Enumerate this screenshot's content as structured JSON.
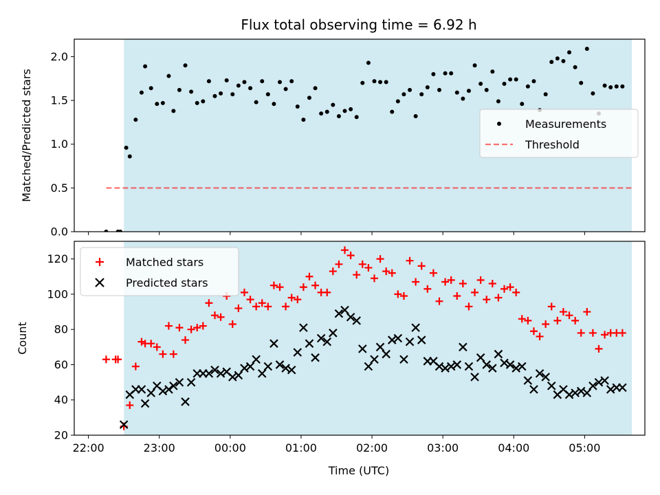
{
  "figure_title": "Flux total observing time = 6.92 h",
  "colors": {
    "shade": "#add8e6",
    "ratio": "#000000",
    "threshold": "#ff0000",
    "matched": "#ff0000",
    "predicted": "#000000"
  },
  "chart_data": [
    {
      "type": "scatter",
      "panel": "top",
      "title": "Flux total observing time = 6.92 h",
      "xlabel": "",
      "ylabel": "Matched/Predicted stars",
      "xlim": [
        "21:48",
        "05:51"
      ],
      "ylim": [
        0,
        2.2
      ],
      "yticks": [
        "0.0",
        "0.5",
        "1.0",
        "1.5",
        "2.0"
      ],
      "shaded_span": [
        "22:30",
        "05:40"
      ],
      "legend_position": "center-right",
      "series": [
        {
          "name": "Measurements",
          "marker": "dot",
          "color": "#000000",
          "x": [
            "22:15",
            "22:25",
            "22:27",
            "22:32",
            "22:35",
            "22:40",
            "22:45",
            "22:48",
            "22:53",
            "22:58",
            "23:03",
            "23:08",
            "23:12",
            "23:17",
            "23:22",
            "23:27",
            "23:32",
            "23:37",
            "23:42",
            "23:47",
            "23:52",
            "23:57",
            "24:02",
            "24:07",
            "24:12",
            "24:17",
            "24:22",
            "24:27",
            "24:32",
            "24:37",
            "24:42",
            "24:47",
            "24:52",
            "24:57",
            "25:02",
            "25:07",
            "25:12",
            "25:17",
            "25:22",
            "25:27",
            "25:32",
            "25:37",
            "25:42",
            "25:47",
            "25:52",
            "25:57",
            "26:02",
            "26:07",
            "26:12",
            "26:17",
            "26:22",
            "26:27",
            "26:32",
            "26:37",
            "26:42",
            "26:47",
            "26:52",
            "26:57",
            "27:02",
            "27:07",
            "27:12",
            "27:17",
            "27:22",
            "27:27",
            "27:32",
            "27:37",
            "27:42",
            "27:47",
            "27:52",
            "27:57",
            "28:02",
            "28:07",
            "28:12",
            "28:17",
            "28:22",
            "28:27",
            "28:32",
            "28:37",
            "28:42",
            "28:47",
            "28:52",
            "28:57",
            "29:02",
            "29:07",
            "29:12",
            "29:17",
            "29:22",
            "29:27",
            "29:32"
          ],
          "y": [
            0.0,
            0.0,
            0.0,
            0.96,
            0.86,
            1.28,
            1.59,
            1.89,
            1.64,
            1.46,
            1.47,
            1.78,
            1.38,
            1.62,
            1.9,
            1.6,
            1.47,
            1.49,
            1.72,
            1.55,
            1.58,
            1.73,
            1.57,
            1.67,
            1.71,
            1.64,
            1.48,
            1.72,
            1.57,
            1.46,
            1.71,
            1.63,
            1.72,
            1.43,
            1.28,
            1.53,
            1.64,
            1.35,
            1.37,
            1.45,
            1.32,
            1.38,
            1.4,
            1.31,
            1.7,
            1.93,
            1.72,
            1.71,
            1.71,
            1.37,
            1.49,
            1.57,
            1.62,
            1.32,
            1.57,
            1.65,
            1.8,
            1.62,
            1.81,
            1.81,
            1.59,
            1.52,
            1.61,
            1.9,
            1.69,
            1.62,
            1.83,
            1.49,
            1.69,
            1.74,
            1.74,
            1.46,
            1.66,
            1.72,
            1.39,
            1.57,
            1.94,
            1.98,
            1.95,
            2.05,
            1.88,
            1.7,
            2.09,
            1.58,
            1.35,
            1.67,
            1.65,
            1.66,
            1.66
          ]
        },
        {
          "name": "Threshold",
          "marker": "dashed-line",
          "color": "#ff0000",
          "x": [
            "22:15",
            "05:40"
          ],
          "y": [
            0.5,
            0.5
          ]
        }
      ]
    },
    {
      "type": "scatter",
      "panel": "bottom",
      "title": "",
      "xlabel": "Time (UTC)",
      "ylabel": "Count",
      "xlim": [
        "21:48",
        "05:51"
      ],
      "ylim": [
        20,
        130
      ],
      "xticks": [
        "22:00",
        "23:00",
        "00:00",
        "01:00",
        "02:00",
        "03:00",
        "04:00",
        "05:00"
      ],
      "yticks": [
        "20",
        "40",
        "60",
        "80",
        "100",
        "120"
      ],
      "shaded_span": [
        "22:30",
        "05:40"
      ],
      "legend_position": "top-left",
      "series": [
        {
          "name": "Matched stars",
          "marker": "plus",
          "color": "#ff0000",
          "x": [
            "22:15",
            "22:23",
            "22:25",
            "22:30",
            "22:35",
            "22:40",
            "22:45",
            "22:48",
            "22:53",
            "22:58",
            "23:03",
            "23:08",
            "23:12",
            "23:17",
            "23:22",
            "23:27",
            "23:32",
            "23:37",
            "23:42",
            "23:47",
            "23:52",
            "23:57",
            "24:02",
            "24:07",
            "24:12",
            "24:17",
            "24:22",
            "24:27",
            "24:32",
            "24:37",
            "24:42",
            "24:47",
            "24:52",
            "24:57",
            "25:02",
            "25:07",
            "25:12",
            "25:17",
            "25:22",
            "25:27",
            "25:32",
            "25:37",
            "25:42",
            "25:47",
            "25:52",
            "25:57",
            "26:02",
            "26:07",
            "26:12",
            "26:17",
            "26:22",
            "26:27",
            "26:32",
            "26:37",
            "26:42",
            "26:47",
            "26:52",
            "26:57",
            "27:02",
            "27:07",
            "27:12",
            "27:17",
            "27:22",
            "27:27",
            "27:32",
            "27:37",
            "27:42",
            "27:47",
            "27:52",
            "27:57",
            "28:02",
            "28:07",
            "28:12",
            "28:17",
            "28:22",
            "28:27",
            "28:32",
            "28:37",
            "28:42",
            "28:47",
            "28:52",
            "28:57",
            "29:02",
            "29:07",
            "29:12",
            "29:17",
            "29:22",
            "29:27",
            "29:32"
          ],
          "y": [
            63,
            63,
            63,
            25,
            37,
            59,
            73,
            72,
            72,
            70,
            66,
            82,
            66,
            81,
            74,
            80,
            81,
            82,
            95,
            88,
            87,
            99,
            83,
            92,
            101,
            97,
            93,
            95,
            93,
            105,
            104,
            93,
            98,
            97,
            104,
            110,
            105,
            101,
            101,
            113,
            117,
            125,
            122,
            111,
            117,
            115,
            109,
            120,
            113,
            112,
            100,
            99,
            119,
            107,
            116,
            103,
            112,
            96,
            107,
            108,
            99,
            106,
            93,
            101,
            108,
            97,
            106,
            98,
            103,
            104,
            101,
            86,
            85,
            79,
            76,
            83,
            93,
            85,
            90,
            88,
            85,
            78,
            90,
            78,
            69,
            77,
            78,
            78,
            78
          ]
        },
        {
          "name": "Predicted stars",
          "marker": "x",
          "color": "#000000",
          "x": [
            "22:30",
            "22:35",
            "22:40",
            "22:45",
            "22:48",
            "22:53",
            "22:58",
            "23:03",
            "23:08",
            "23:12",
            "23:17",
            "23:22",
            "23:27",
            "23:32",
            "23:37",
            "23:42",
            "23:47",
            "23:52",
            "23:57",
            "24:02",
            "24:07",
            "24:12",
            "24:17",
            "24:22",
            "24:27",
            "24:32",
            "24:37",
            "24:42",
            "24:47",
            "24:52",
            "24:57",
            "25:02",
            "25:07",
            "25:12",
            "25:17",
            "25:22",
            "25:27",
            "25:32",
            "25:37",
            "25:42",
            "25:47",
            "25:52",
            "25:57",
            "26:02",
            "26:07",
            "26:12",
            "26:17",
            "26:22",
            "26:27",
            "26:32",
            "26:37",
            "26:42",
            "26:47",
            "26:52",
            "26:57",
            "27:02",
            "27:07",
            "27:12",
            "27:17",
            "27:22",
            "27:27",
            "27:32",
            "27:37",
            "27:42",
            "27:47",
            "27:52",
            "27:57",
            "28:02",
            "28:07",
            "28:12",
            "28:17",
            "28:22",
            "28:27",
            "28:32",
            "28:37",
            "28:42",
            "28:47",
            "28:52",
            "28:57",
            "29:02",
            "29:07",
            "29:12",
            "29:17",
            "29:22",
            "29:27",
            "29:32"
          ],
          "y": [
            26,
            43,
            46,
            46,
            38,
            44,
            48,
            45,
            46,
            48,
            50,
            39,
            50,
            55,
            55,
            55,
            57,
            55,
            56,
            53,
            54,
            58,
            59,
            63,
            55,
            59,
            72,
            60,
            58,
            57,
            67,
            81,
            72,
            64,
            75,
            73,
            78,
            89,
            91,
            87,
            85,
            69,
            59,
            63,
            70,
            66,
            74,
            75,
            63,
            73,
            81,
            74,
            62,
            62,
            59,
            58,
            59,
            60,
            70,
            59,
            53,
            64,
            60,
            58,
            66,
            61,
            60,
            58,
            59,
            51,
            46,
            55,
            53,
            48,
            43,
            46,
            43,
            44,
            45,
            44,
            48,
            50,
            51,
            46,
            47,
            47
          ]
        }
      ]
    }
  ]
}
